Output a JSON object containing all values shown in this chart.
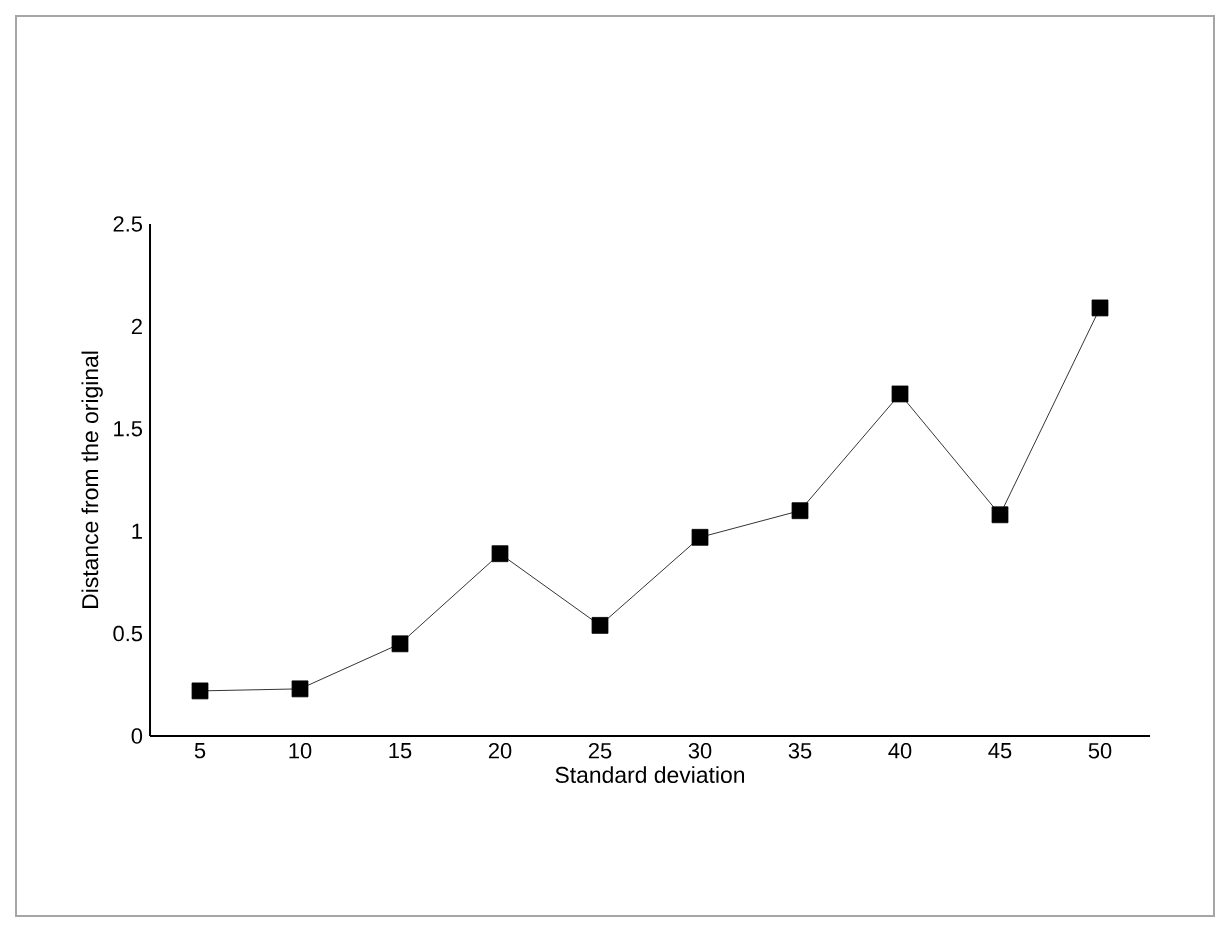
{
  "chart_data": {
    "type": "line",
    "xlabel": "Standard deviation",
    "ylabel": "Distance from the original",
    "x": [
      5,
      10,
      15,
      20,
      25,
      30,
      35,
      40,
      45,
      50
    ],
    "series": [
      {
        "color": "#000000",
        "values": [
          0.22,
          0.23,
          0.45,
          0.89,
          0.54,
          0.97,
          1.1,
          1.67,
          1.08,
          2.09
        ]
      }
    ],
    "xlim": [
      2.5,
      52.5
    ],
    "xticks": [
      5,
      10,
      15,
      20,
      25,
      30,
      35,
      40,
      45,
      50
    ],
    "ylim": [
      0,
      2.5
    ],
    "yticks": [
      0,
      0.5,
      1,
      1.5,
      2,
      2.5
    ],
    "grid": false,
    "marker": "square",
    "line_style": "solid"
  }
}
